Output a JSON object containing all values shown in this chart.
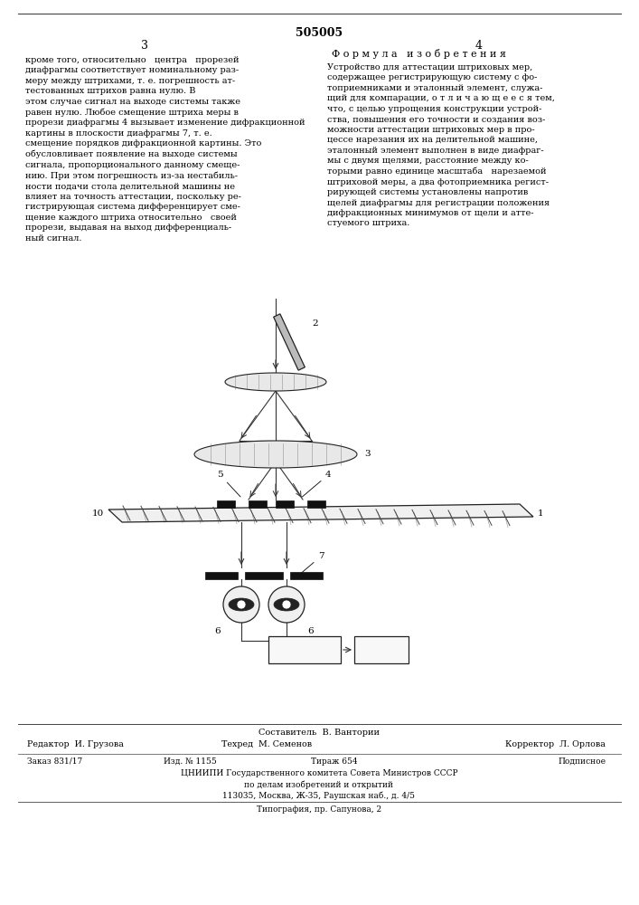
{
  "title": "505005",
  "page_left": "3",
  "page_right": "4",
  "col_right_header": "Ф о р м у л а   и з о б р е т е н и я",
  "text_left": "кроме того, относительно   центра   прорезей\nдиафрагмы соответствует номинальному раз-\nмеру между штрихами, т. е. погрешность ат-\nтестованных штрихов равна нулю. В\nэтом случае сигнал на выходе системы также\nравен нулю. Любое смещение штриха меры в\nпрорези диафрагмы 4 вызывает изменение дифракционной\nкартины в плоскости диафрагмы 7, т. е.\nсмещение порядков дифракционной картины. Это\nобусловливает появление на выходе системы\nсигнала, пропорционального данному смеще-\nнию. При этом погрешность из-за нестабиль-\nности подачи стола делительной машины не\nвлияет на точность аттестации, поскольку ре-\nгистрирующая система дифференцирует сме-\nщение каждого штриха относительно   своей\nпрорези, выдавая на выход дифференциаль-\nный сигнал.",
  "text_right": "Устройство для аттестации штриховых мер,\nсодержащее регистрирующую систему с фо-\nтоприемниками и эталонный элемент, служа-\nщий для компарации, о т л и ч а ю щ е е с я тем,\nчто, с целью упрощения конструкции устрой-\nства, повышения его точности и создания воз-\nможности аттестации штриховых мер в про-\nцессе нарезания их на делительной машине,\nэталонный элемент выполнен в виде диафраг-\nмы с двумя щелями, расстояние между ко-\nторыми равно единице масштаба   нарезаемой\nштриховой меры, а два фотоприемника регист-\nрирующей системы установлены напротив\nщелей диафрагмы для регистрации положения\nдифракционных минимумов от щели и атте-\nстуемого штриха.",
  "footer_composer": "Составитель  В. Вантории",
  "footer_editor": "Редактор  И. Грузова",
  "footer_techred": "Техред  М. Семенов",
  "footer_corrector": "Корректор  Л. Орлова",
  "footer_order": "Заказ 831/17",
  "footer_izd": "Изд. № 1155",
  "footer_tirazh": "Тираж 654",
  "footer_podpisnoe": "Подписное",
  "footer_tsniip": "ЦНИИПИ Государственного комитета Совета Министров СССР",
  "footer_po_delam": "по делам изобретений и открытий",
  "footer_address": "113035, Москва, Ж-35, Раушская наб., д. 4/5",
  "footer_tipografia": "Типография, пр. Сапунова, 2",
  "bg_color": "#ffffff",
  "text_color": "#000000"
}
